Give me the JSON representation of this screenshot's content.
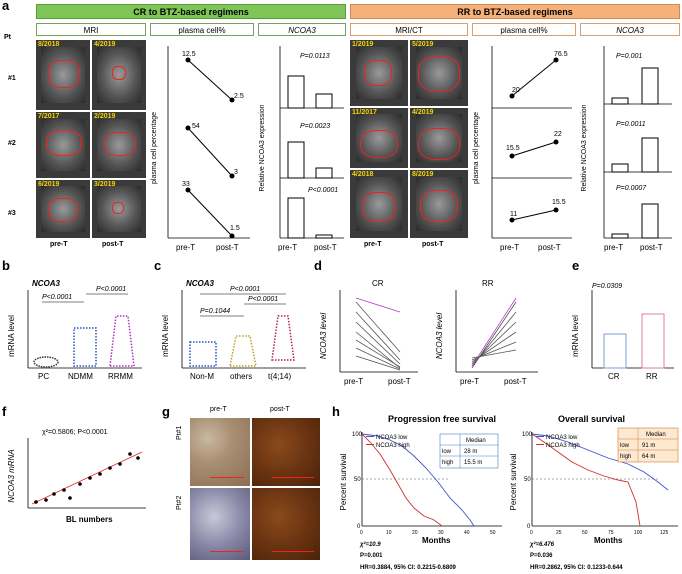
{
  "panel_a": {
    "label": "a",
    "header_cr": "CR to BTZ-based regimens",
    "header_rr": "RR to BTZ-based regimens",
    "pt_label": "Pt",
    "sub_cr": [
      "MRI",
      "plasma cell%",
      "NCOA3"
    ],
    "sub_rr": [
      "MRI/CT",
      "plasma cell%",
      "NCOA3"
    ],
    "rows_cr": [
      "#1",
      "#2",
      "#3"
    ],
    "mri_dates_cr": [
      [
        "8/2018",
        "4/2019"
      ],
      [
        "7/2017",
        "2/2019"
      ],
      [
        "6/2019",
        "3/2019"
      ]
    ],
    "mri_dates_rr": [
      [
        "1/2019",
        "5/2019"
      ],
      [
        "11/2017",
        "4/2019"
      ],
      [
        "4/2018",
        "8/2019"
      ]
    ],
    "pre_post": [
      "pre-T",
      "post-T"
    ],
    "pc_cr": [
      [
        "12.5",
        "2.5"
      ],
      [
        "54",
        "3"
      ],
      [
        "33",
        "1.5"
      ]
    ],
    "pc_rr": [
      [
        "20",
        "76.5"
      ],
      [
        "15.5",
        "22"
      ],
      [
        "11",
        "15.5"
      ]
    ],
    "pvals_cr": [
      "P=0.0113",
      "P=0.0023",
      "P<0.0001"
    ],
    "pvals_rr": [
      "P=0.001",
      "P=0.0011",
      "P=0.0007"
    ],
    "ylabel_pc": "plasma cell percentage",
    "ylabel_ncoa3": "Relative NCOA3 expression",
    "ncoa3_rr_label": "NCOA3"
  },
  "panel_b": {
    "label": "b",
    "title": "NCOA3",
    "ylabel": "mRNA level",
    "cats": [
      "PC",
      "NDMM",
      "RRMM"
    ],
    "p1": "P<0.0001",
    "p2": "P<0.0001"
  },
  "panel_c": {
    "label": "c",
    "title": "NCOA3",
    "ylabel": "mRNA level",
    "cats": [
      "Non-M",
      "others",
      "t(4;14)"
    ],
    "p1": "P=0.1044",
    "p2": "P<0.0001",
    "p3": "P<0.0001"
  },
  "panel_d": {
    "label": "d",
    "t1": "CR",
    "t2": "RR",
    "ylabel": "NCOA3 level",
    "cats": [
      "pre-T",
      "post-T"
    ]
  },
  "panel_e": {
    "label": "e",
    "p": "P=0.0309",
    "ylabel": "mRNA level",
    "cats": [
      "CR",
      "RR"
    ]
  },
  "panel_f": {
    "label": "f",
    "stat": "χ²=0.5806;  P<0.0001",
    "ylabel": "NCOA3 mRNA",
    "xlabel": "BL numbers"
  },
  "panel_g": {
    "label": "g",
    "cols": [
      "pre-T",
      "post-T"
    ],
    "rows": [
      "Pt#1",
      "Pt#2"
    ]
  },
  "panel_h": {
    "label": "h",
    "pfs_title": "Progression free survival",
    "os_title": "Overall survival",
    "ylabel": "Percent survival",
    "xlabel": "Months",
    "legend_low": "NCOA3 low",
    "legend_high": "NCOA3 high",
    "median_header": "Median",
    "pfs_table": [
      [
        "low",
        "28 m"
      ],
      [
        "high",
        "15.5 m"
      ]
    ],
    "os_table": [
      [
        "low",
        "91 m"
      ],
      [
        "high",
        "64 m"
      ]
    ],
    "pfs_stats": [
      "χ²=10.9",
      "P=0.001",
      "HR=0.3884, 95% CI: 0.2215-0.6809"
    ],
    "os_stats": [
      "χ²=6.476",
      "P=0.036",
      "HR=0.2862, 95% CI: 0.1233-0.644"
    ],
    "pfs_xticks": [
      "0",
      "10",
      "20",
      "30",
      "40",
      "50"
    ],
    "os_xticks": [
      "0",
      "25",
      "50",
      "75",
      "100",
      "125"
    ],
    "yticks": [
      "0",
      "50",
      "100"
    ]
  },
  "chart_data": [
    {
      "type": "scatter",
      "title": "NCOA3 (b)",
      "categories": [
        "PC",
        "NDMM",
        "RRMM"
      ],
      "ylabel": "mRNA level",
      "ylim": [
        0,
        50
      ]
    },
    {
      "type": "scatter",
      "title": "NCOA3 (c)",
      "categories": [
        "Non-M",
        "others",
        "t(4;14)"
      ],
      "ylabel": "mRNA level",
      "ylim": [
        0,
        50
      ]
    },
    {
      "type": "bar",
      "title": "e",
      "categories": [
        "CR",
        "RR"
      ],
      "values": [
        6.5,
        11
      ],
      "ylabel": "mRNA level",
      "ylim": [
        0,
        20
      ]
    }
  ]
}
